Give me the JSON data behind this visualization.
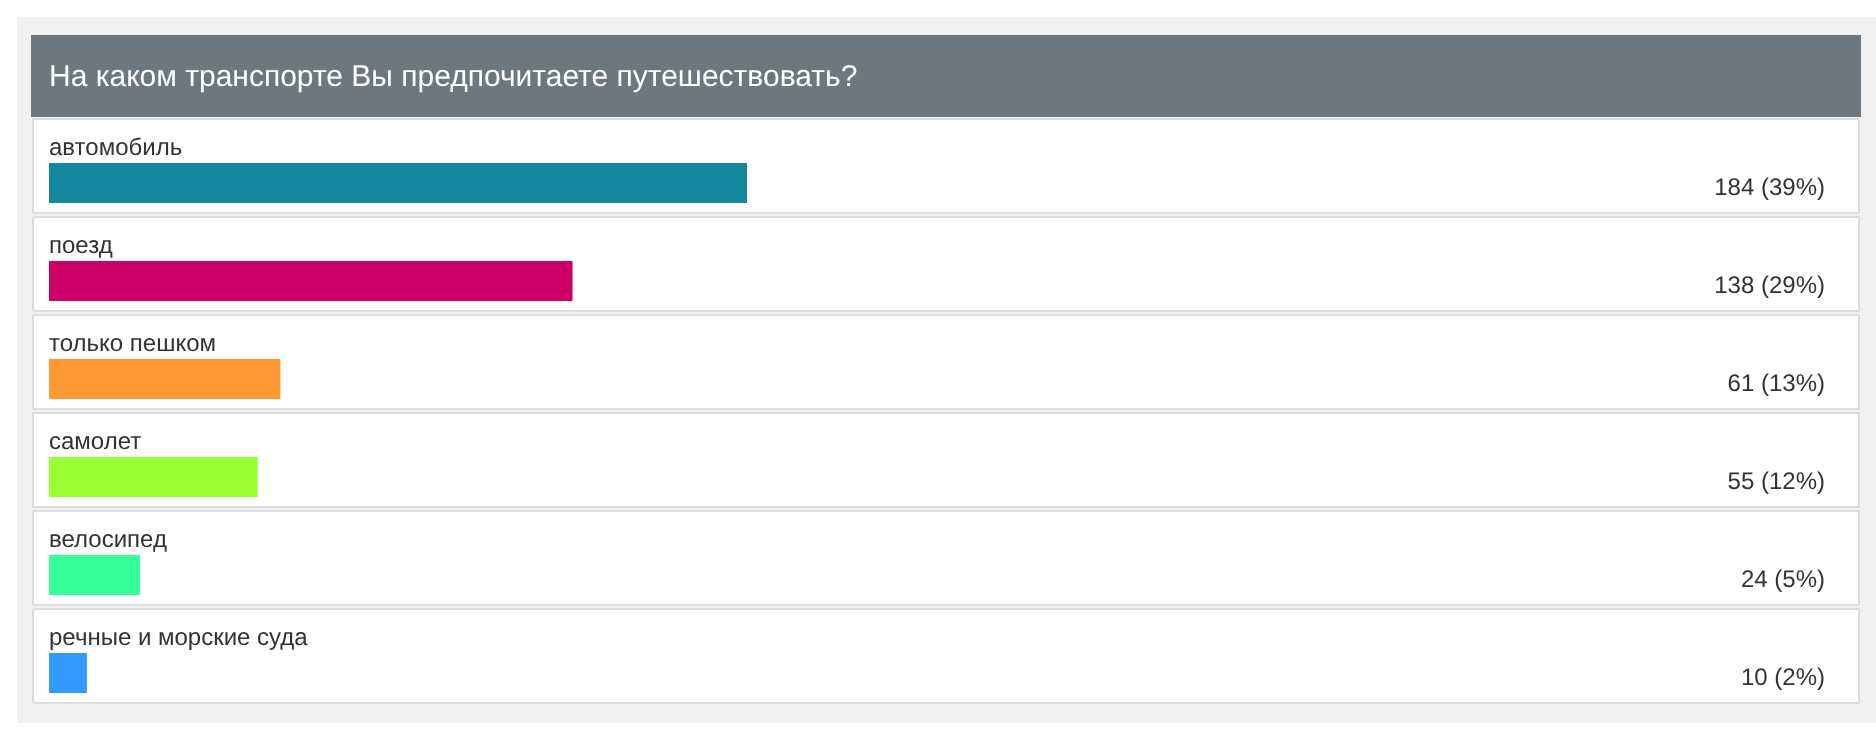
{
  "chart_data": {
    "type": "bar",
    "orientation": "horizontal",
    "title": "На каком транспорте Вы предпочитаете путешествовать?",
    "categories": [
      "автомобиль",
      "поезд",
      "только пешком",
      "самолет",
      "велосипед",
      "речные и морские суда"
    ],
    "values": [
      184,
      138,
      61,
      55,
      24,
      10
    ],
    "colors": [
      "#13889f",
      "#cc0066",
      "#ff9933",
      "#99ff33",
      "#33ff99",
      "#3399ff"
    ],
    "value_labels": [
      "184 (39%)",
      "138 (29%)",
      "61 (13%)",
      "55 (12%)",
      "24 (5%)",
      "10 (2%)"
    ],
    "grid": false,
    "tick_labels": false
  }
}
